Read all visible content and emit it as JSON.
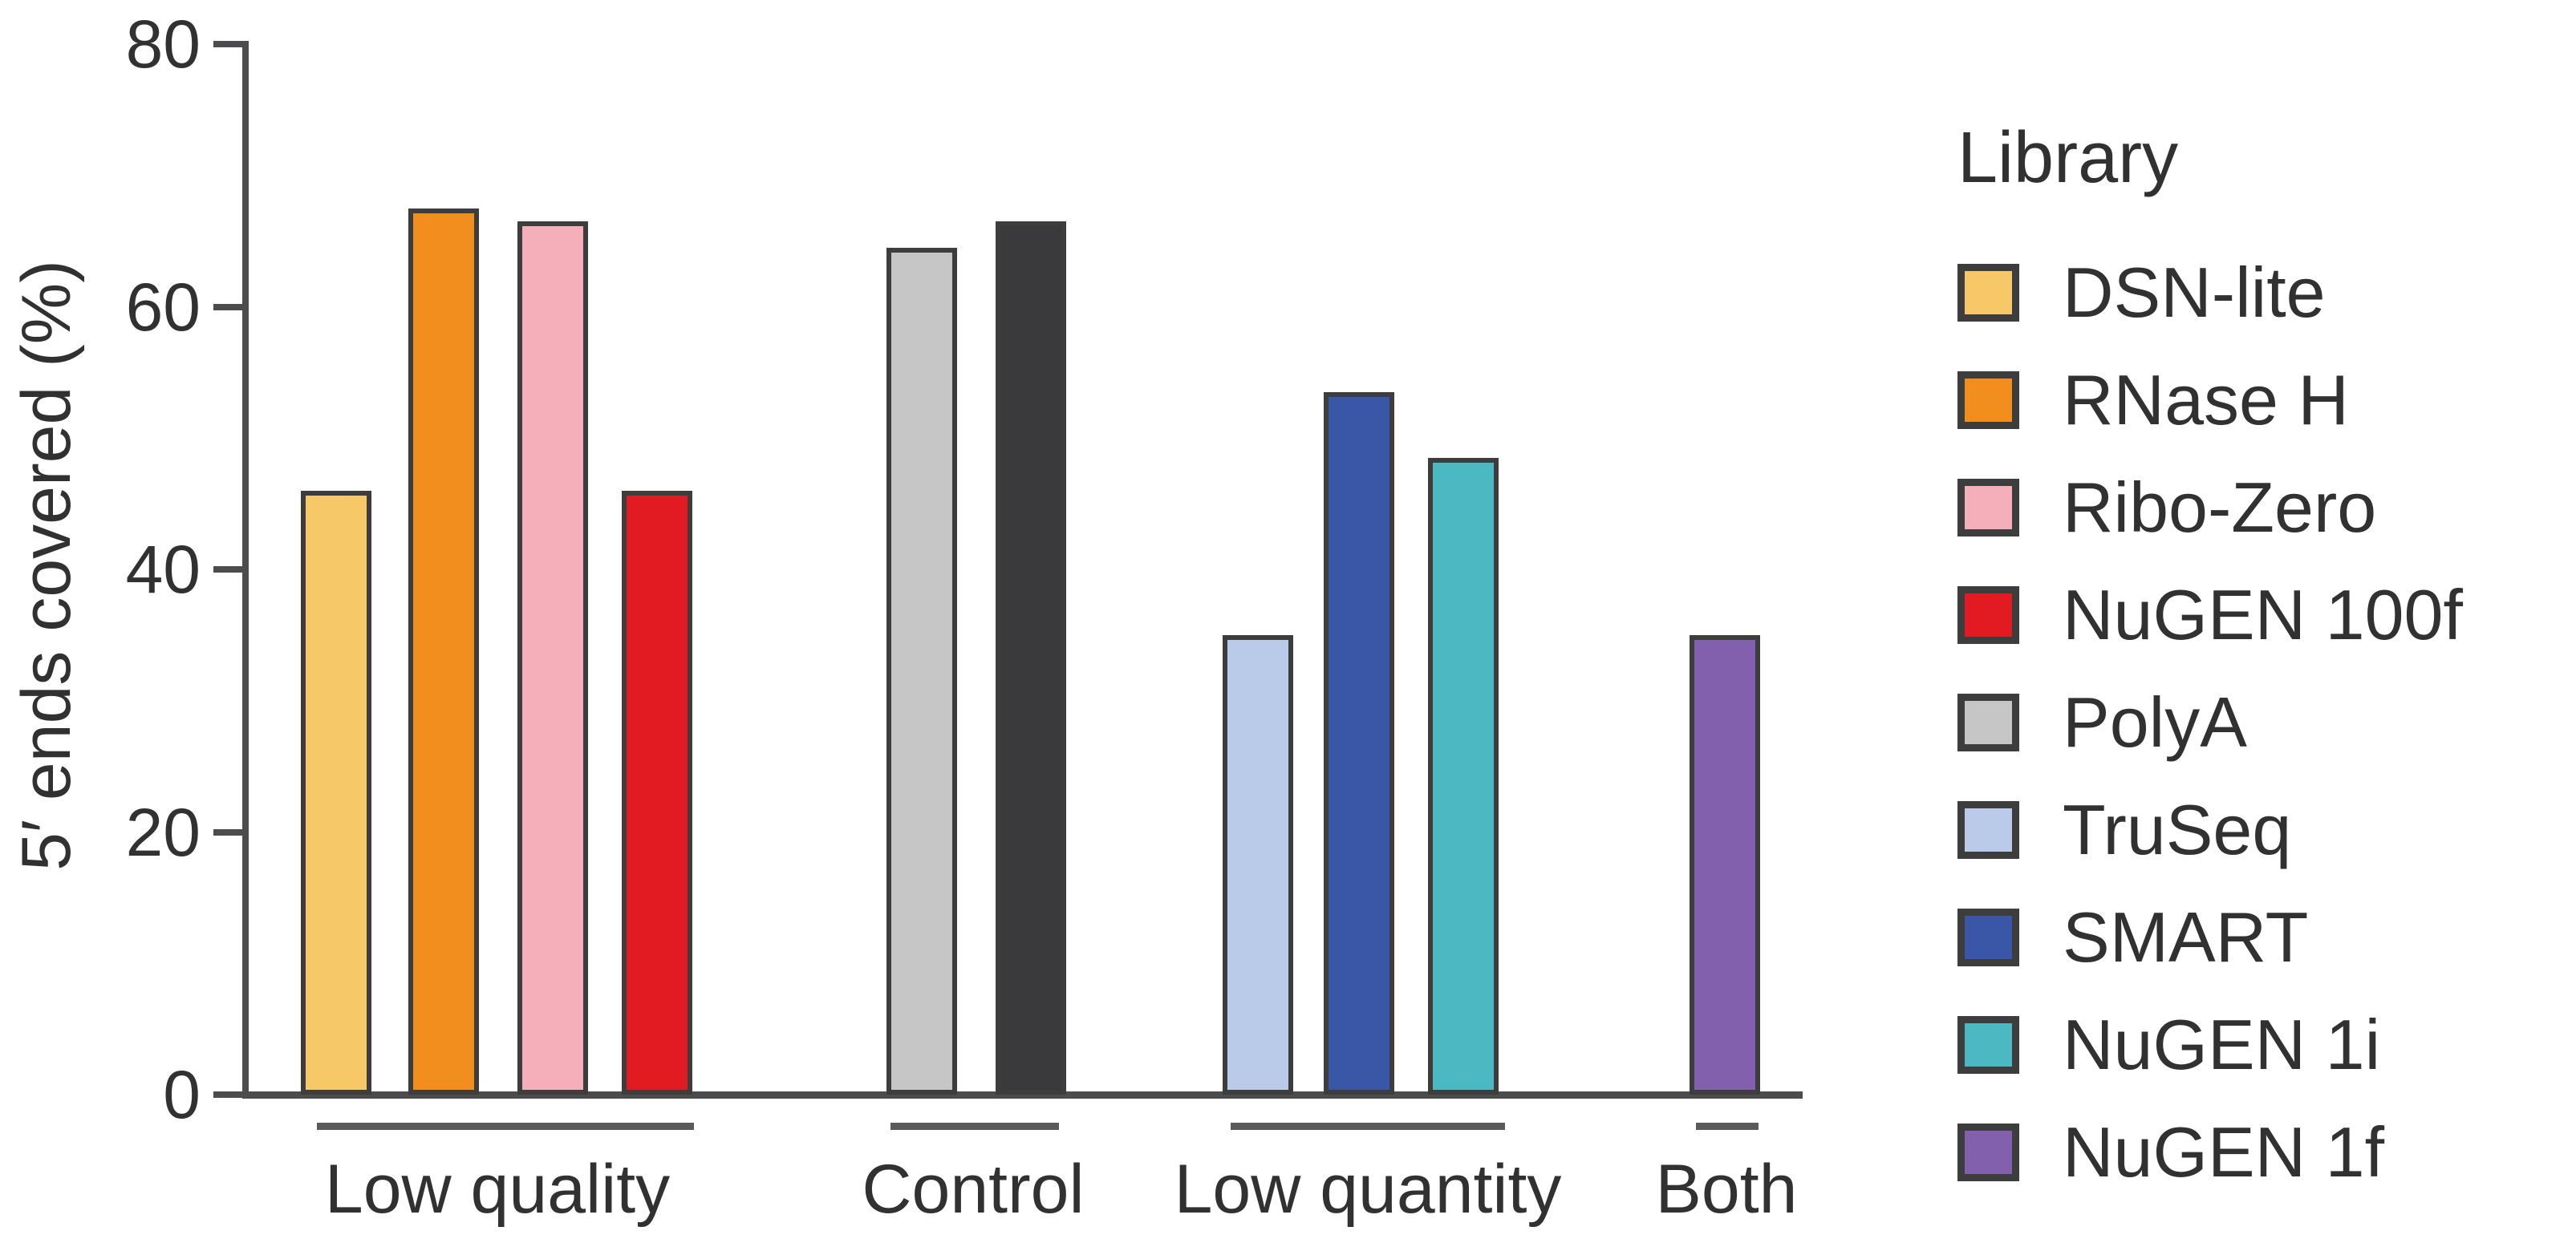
{
  "chart_data": {
    "type": "bar",
    "title": "",
    "xlabel": "",
    "ylabel": "5′ ends covered (%)",
    "ylim": [
      0,
      80
    ],
    "yticks": [
      0,
      20,
      40,
      60,
      80
    ],
    "grid": false,
    "legend": {
      "title": "Library",
      "position": "right",
      "items": [
        {
          "label": "DSN-lite",
          "color": "#f6c868"
        },
        {
          "label": "RNase H",
          "color": "#f28e1e"
        },
        {
          "label": "Ribo-Zero",
          "color": "#f5afba"
        },
        {
          "label": "NuGEN 100f",
          "color": "#e21a22"
        },
        {
          "label": "PolyA",
          "color": "#c6c6c7"
        },
        {
          "label": "TruSeq",
          "color": "#bacbe9"
        },
        {
          "label": "SMART",
          "color": "#3a57a7"
        },
        {
          "label": "NuGEN 1i",
          "color": "#4cb8c1"
        },
        {
          "label": "NuGEN 1f",
          "color": "#8260ae"
        }
      ]
    },
    "groups": [
      {
        "label": "Low quality",
        "bars": [
          {
            "library": "DSN-lite",
            "value": 46,
            "color": "#f6c868"
          },
          {
            "library": "RNase H",
            "value": 67.5,
            "color": "#f28e1e"
          },
          {
            "library": "Ribo-Zero",
            "value": 66.5,
            "color": "#f5afba"
          },
          {
            "library": "NuGEN 100f",
            "value": 46,
            "color": "#e21a22"
          }
        ]
      },
      {
        "label": "Control",
        "bars": [
          {
            "library": "PolyA",
            "value": 64.5,
            "color": "#c6c6c7"
          },
          {
            "library": "",
            "value": 66.5,
            "color": "#3a3a3c"
          }
        ]
      },
      {
        "label": "Low quantity",
        "bars": [
          {
            "library": "TruSeq",
            "value": 35,
            "color": "#bacbe9"
          },
          {
            "library": "SMART",
            "value": 53.5,
            "color": "#3a57a7"
          },
          {
            "library": "NuGEN 1i",
            "value": 48.5,
            "color": "#4cb8c1"
          }
        ]
      },
      {
        "label": "Both",
        "bars": [
          {
            "library": "NuGEN 1f",
            "value": 35,
            "color": "#8260ae"
          }
        ]
      }
    ]
  }
}
